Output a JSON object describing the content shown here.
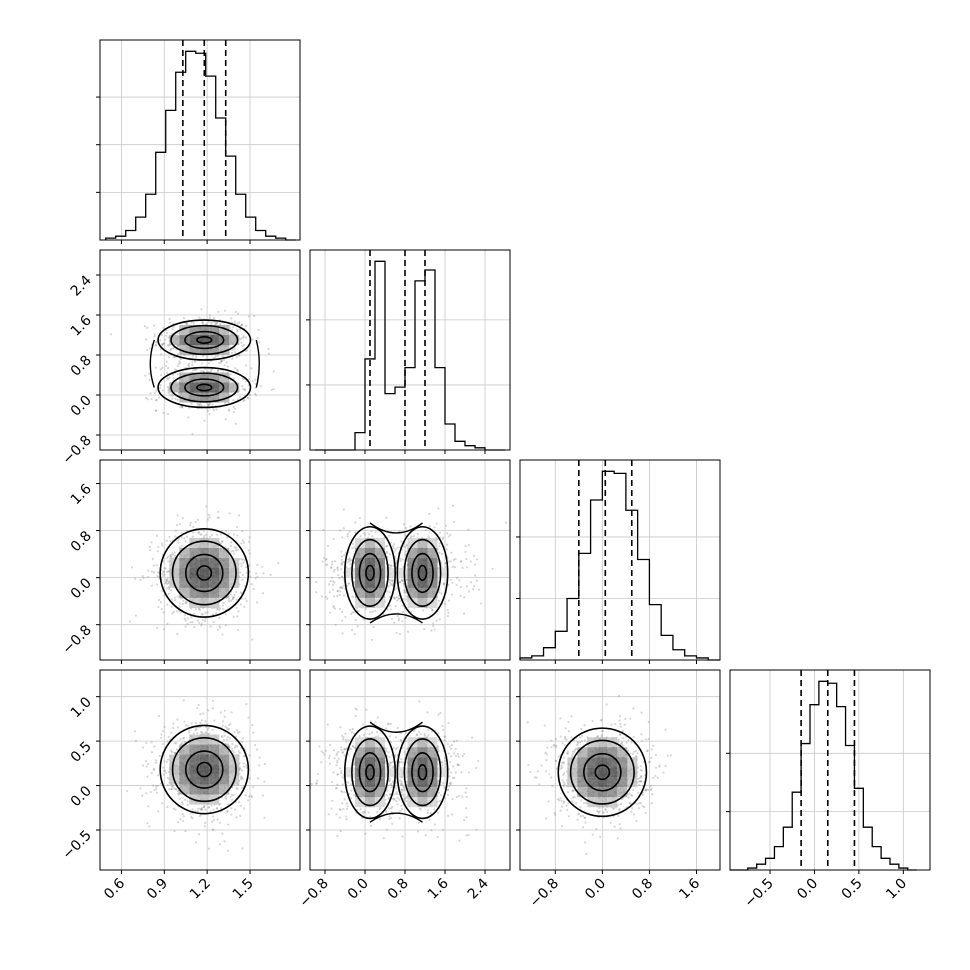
{
  "chart_data": {
    "type": "corner",
    "variables": [
      {
        "index": 0,
        "range": [
          0.45,
          1.85
        ],
        "ticks": [
          0.6,
          0.9,
          1.2,
          1.5
        ],
        "tick_labels": [
          "0.6",
          "0.9",
          "1.2",
          "1.5"
        ]
      },
      {
        "index": 1,
        "range": [
          -1.1,
          2.9
        ],
        "ticks": [
          -0.8,
          0.0,
          0.8,
          1.6,
          2.4
        ],
        "tick_labels": [
          "−0.8",
          "0.0",
          "0.8",
          "1.6",
          "2.4"
        ]
      },
      {
        "index": 2,
        "range": [
          -1.4,
          2.0
        ],
        "ticks": [
          -0.8,
          0.0,
          0.8,
          1.6
        ],
        "tick_labels": [
          "−0.8",
          "0.0",
          "0.8",
          "1.6"
        ]
      },
      {
        "index": 3,
        "range": [
          -0.95,
          1.3
        ],
        "ticks": [
          -0.5,
          0.0,
          0.5,
          1.0
        ],
        "tick_labels": [
          "−0.5",
          "0.0",
          "0.5",
          "1.0"
        ]
      }
    ],
    "diagonal_histograms": [
      {
        "var": 0,
        "quantiles": [
          1.03,
          1.18,
          1.33
        ],
        "bin_edges": [
          0.49,
          0.56,
          0.63,
          0.7,
          0.77,
          0.84,
          0.91,
          0.98,
          1.05,
          1.12,
          1.19,
          1.26,
          1.33,
          1.4,
          1.47,
          1.54,
          1.61,
          1.68,
          1.75,
          1.82
        ],
        "counts": [
          1,
          2,
          5,
          12,
          24,
          46,
          68,
          88,
          99,
          98,
          86,
          64,
          44,
          24,
          12,
          5,
          2,
          1,
          0
        ],
        "y_ticks": [
          25,
          50,
          75
        ]
      },
      {
        "var": 1,
        "quantiles": [
          0.1,
          0.8,
          1.2
        ],
        "bin_edges": [
          -1.0,
          -0.8,
          -0.6,
          -0.4,
          -0.2,
          0.0,
          0.2,
          0.4,
          0.6,
          0.8,
          1.0,
          1.2,
          1.4,
          1.6,
          1.8,
          2.0,
          2.2,
          2.4,
          2.6,
          2.8
        ],
        "counts": [
          0,
          0,
          0,
          0,
          8,
          42,
          87,
          26,
          29,
          38,
          78,
          83,
          38,
          12,
          4,
          2,
          1,
          0,
          0
        ],
        "y_ticks": [
          30,
          60
        ]
      },
      {
        "var": 2,
        "quantiles": [
          -0.4,
          0.05,
          0.5
        ],
        "bin_edges": [
          -1.4,
          -1.2,
          -1.0,
          -0.8,
          -0.6,
          -0.4,
          -0.2,
          0.0,
          0.2,
          0.4,
          0.6,
          0.8,
          1.0,
          1.2,
          1.4,
          1.6,
          1.8,
          2.0
        ],
        "counts": [
          1,
          2,
          6,
          14,
          30,
          52,
          78,
          92,
          91,
          73,
          49,
          27,
          12,
          5,
          2,
          1,
          0
        ],
        "y_ticks": [
          30,
          60
        ]
      },
      {
        "var": 3,
        "quantiles": [
          -0.15,
          0.15,
          0.45
        ],
        "bin_edges": [
          -0.95,
          -0.85,
          -0.75,
          -0.65,
          -0.55,
          -0.45,
          -0.35,
          -0.25,
          -0.15,
          -0.05,
          0.05,
          0.15,
          0.25,
          0.35,
          0.45,
          0.55,
          0.65,
          0.75,
          0.85,
          0.95,
          1.05,
          1.15
        ],
        "counts": [
          0,
          0,
          1,
          3,
          6,
          12,
          22,
          40,
          65,
          85,
          97,
          96,
          84,
          64,
          42,
          22,
          12,
          6,
          3,
          1,
          0
        ],
        "y_ticks": [
          30,
          60
        ]
      }
    ],
    "pair_panels": [
      {
        "x": 0,
        "y": 1,
        "centers": [
          [
            1.18,
            1.1
          ],
          [
            1.18,
            0.15
          ]
        ]
      },
      {
        "x": 0,
        "y": 2,
        "centers": [
          [
            1.18,
            0.08
          ]
        ]
      },
      {
        "x": 1,
        "y": 2,
        "centers": [
          [
            0.1,
            0.08
          ],
          [
            1.15,
            0.08
          ]
        ]
      },
      {
        "x": 0,
        "y": 3,
        "centers": [
          [
            1.18,
            0.18
          ]
        ]
      },
      {
        "x": 1,
        "y": 3,
        "centers": [
          [
            0.1,
            0.15
          ],
          [
            1.15,
            0.15
          ]
        ]
      },
      {
        "x": 2,
        "y": 3,
        "centers": [
          [
            0.0,
            0.15
          ]
        ]
      }
    ],
    "grid": true,
    "quantile_lines": "dashed"
  }
}
